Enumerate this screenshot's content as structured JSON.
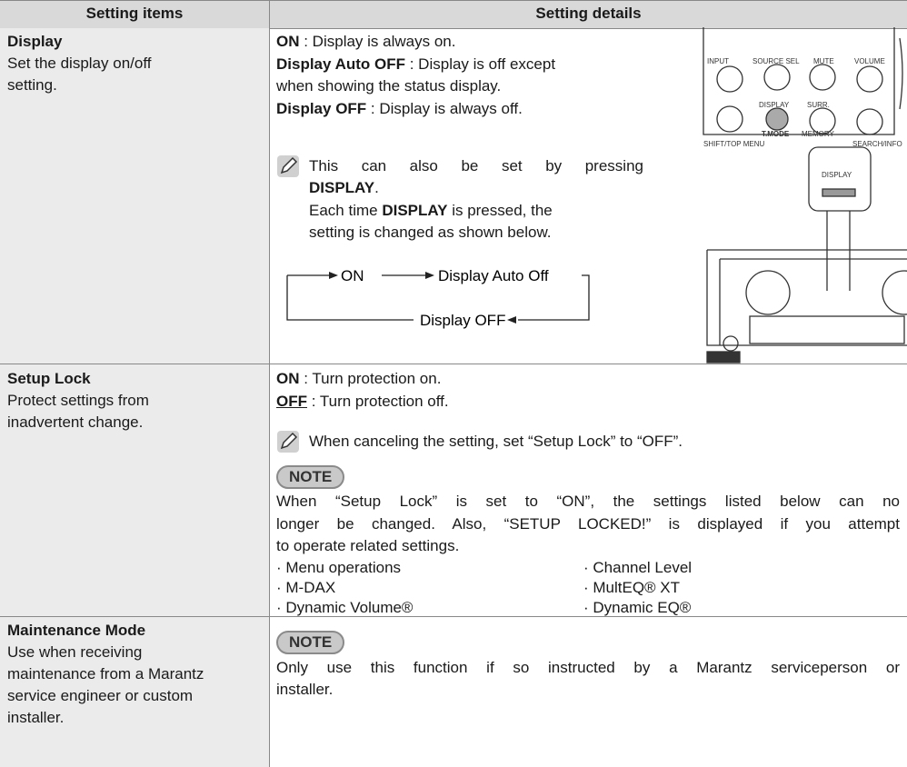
{
  "header": {
    "items": "Setting items",
    "details": "Setting details"
  },
  "rows": [
    {
      "item": "Display",
      "description": [
        "Set the display on/off",
        "setting."
      ],
      "options": [
        {
          "label": "ON",
          "text": [
            ": Display is always on."
          ]
        },
        {
          "label": "Display Auto OFF",
          "text": [
            ": Display is off except",
            "when showing the status display."
          ]
        },
        {
          "label": "Display OFF",
          "text": [
            ": Display is always off."
          ]
        }
      ],
      "tip": {
        "line1": "This can also be set by pressing",
        "key": "DISPLAY",
        "line2_end": ".",
        "line3_start": "Each time",
        "line3_end": "is pressed, the",
        "line4": "setting is changed as shown below."
      },
      "cycle": [
        "ON",
        "Display Auto Off",
        "Display OFF"
      ],
      "remote_labels": [
        "INPUT",
        "SOURCE SEL",
        "MUTE",
        "VOLUME",
        "DISPLAY",
        "SURR.",
        "T.MODE",
        "MEMORY",
        "SHIFT/TOP MENU",
        "SEARCH/INFO"
      ],
      "panel_label": "DISPLAY"
    },
    {
      "item": "Setup Lock",
      "description": [
        "Protect settings from",
        "inadvertent change."
      ],
      "options": [
        {
          "label": "ON",
          "text": [
            ": Turn protection on."
          ]
        },
        {
          "label": "OFF",
          "text": [
            ": Turn protection off."
          ]
        }
      ],
      "tip": "When canceling the setting, set “Setup Lock” to “OFF”.",
      "note_badge": "NOTE",
      "note": [
        "When “Setup Lock” is set to “ON”, the settings listed below can no",
        "longer be changed. Also, “SETUP LOCKED!” is displayed if you attempt",
        "to operate related settings."
      ],
      "bullets": [
        "· Menu operations",
        "· Channel Level",
        "· M-DAX",
        "· MultEQ® XT",
        "· Dynamic Volume®",
        "· Dynamic EQ®"
      ]
    },
    {
      "item": "Maintenance Mode",
      "description": [
        "Use when receiving",
        "maintenance from a Marantz",
        "service engineer or custom",
        "installer."
      ],
      "note_badge": "NOTE",
      "note": [
        "Only use this function if so instructed by a Marantz serviceperson or",
        "installer."
      ]
    }
  ]
}
